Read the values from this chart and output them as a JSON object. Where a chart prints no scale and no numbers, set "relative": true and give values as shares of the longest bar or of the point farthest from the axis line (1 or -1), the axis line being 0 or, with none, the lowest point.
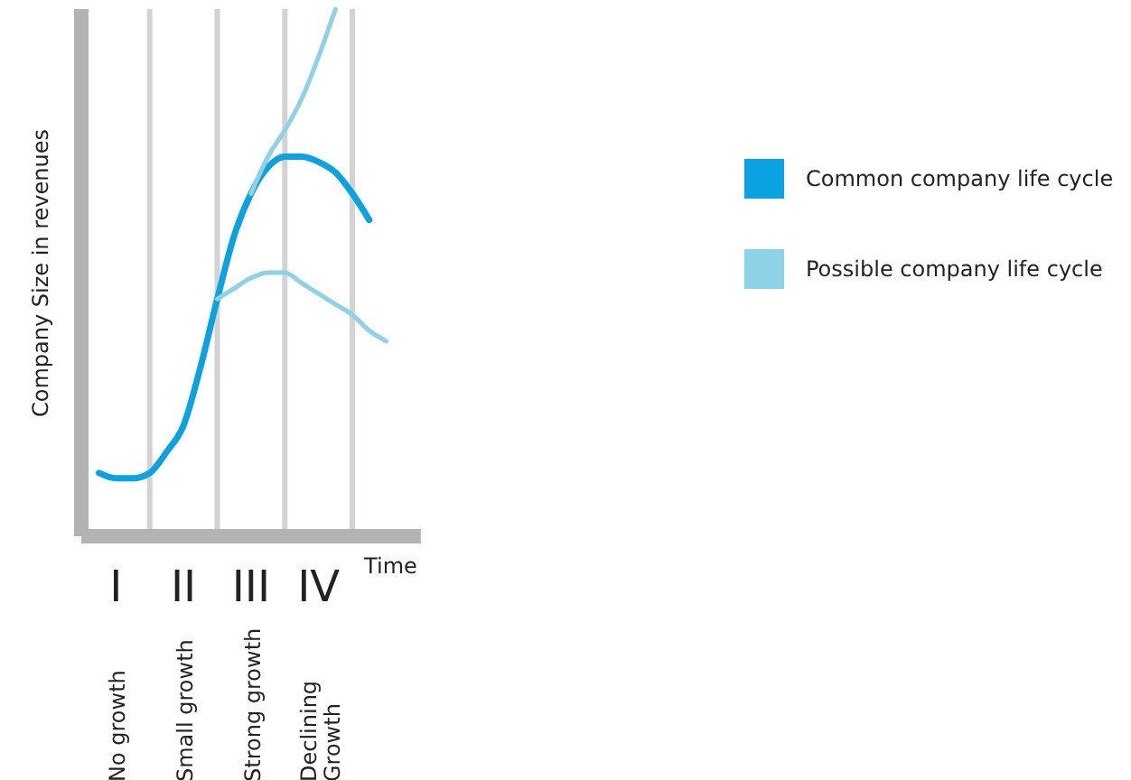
{
  "chart_data": {
    "type": "line",
    "relative": true,
    "xlabel": "Time",
    "ylabel": "Company Size in revenues",
    "categories": [
      null,
      "I",
      null,
      null,
      null,
      "II",
      null,
      null,
      null,
      "III",
      null,
      null,
      null,
      "IV",
      null,
      null,
      null,
      null
    ],
    "annotations": [
      "No growth",
      "Small growth",
      "Strong growth",
      "Declining Growth"
    ],
    "legend": "right",
    "marker": "none",
    "line_style": "solid",
    "series": [
      {
        "name": "Common company life cycle",
        "color": "#0aa2e0",
        "values": [
          0.12,
          0.11,
          0.11,
          0.12,
          0.16,
          0.21,
          0.32,
          0.45,
          0.57,
          0.65,
          0.7,
          0.72,
          0.72,
          0.71,
          0.69,
          0.65,
          0.6,
          null
        ]
      },
      {
        "name": "Possible company life cycle",
        "color": "#8dd2e6",
        "values": [
          null,
          null,
          null,
          null,
          null,
          null,
          null,
          0.45,
          0.47,
          0.49,
          0.5,
          0.5,
          0.48,
          0.46,
          0.44,
          0.42,
          0.39,
          0.37
        ]
      },
      {
        "color": "#8dd2e6",
        "values": [
          null,
          null,
          null,
          null,
          null,
          null,
          null,
          null,
          null,
          0.65,
          0.72,
          0.77,
          0.83,
          0.91,
          1,
          null,
          null,
          null
        ]
      }
    ]
  }
}
